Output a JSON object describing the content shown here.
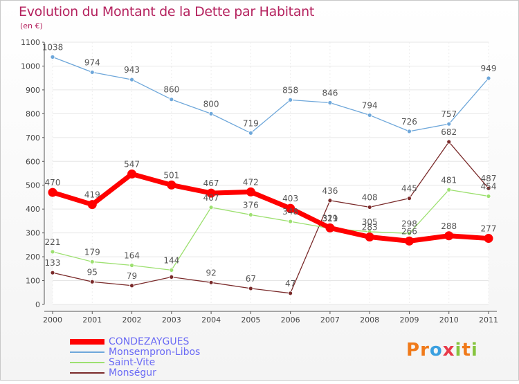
{
  "title": "Evolution du Montant de la Dette par Habitant",
  "unit": "(en €)",
  "logo": {
    "text": "Proxiti",
    "letters": [
      "P",
      "r",
      "o",
      "x",
      "i",
      "t",
      "i"
    ],
    "letter_colors": [
      "#f07a1a",
      "#f07a1a",
      "#3ba0e0",
      "#e83a4a",
      "#86c43e",
      "#f07a1a",
      "#86c43e"
    ]
  },
  "chart_data": {
    "type": "line",
    "title": "Evolution du Montant de la Dette par Habitant",
    "ylabel": "(en €)",
    "xlabel": "",
    "x": [
      "2000",
      "2001",
      "2002",
      "2003",
      "2004",
      "2005",
      "2006",
      "2007",
      "2008",
      "2009",
      "2010",
      "2011"
    ],
    "ylim": [
      0,
      1100
    ],
    "yticks": [
      0,
      100,
      200,
      300,
      400,
      500,
      600,
      700,
      800,
      900,
      1000,
      1100
    ],
    "grid": true,
    "legend_position": "bottom-left",
    "series": [
      {
        "name": "CONDEZAYGUES",
        "color": "#ff0000",
        "values": [
          470,
          419,
          547,
          501,
          467,
          472,
          403,
          321,
          283,
          266,
          288,
          277
        ],
        "labels": [
          "470",
          "419",
          "547",
          "501",
          "467",
          "472",
          "403",
          "321",
          "283",
          "266",
          "288",
          "277"
        ],
        "emphasis": true
      },
      {
        "name": "Monsempron-Libos",
        "color": "#6ea7da",
        "values": [
          1038,
          974,
          943,
          860,
          800,
          719,
          858,
          846,
          794,
          726,
          757,
          949
        ],
        "labels": [
          "1038",
          "974",
          "943",
          "860",
          "800",
          "719",
          "858",
          "846",
          "794",
          "726",
          "757",
          "949"
        ]
      },
      {
        "name": "Saint-Vite",
        "color": "#9de070",
        "values": [
          221,
          179,
          164,
          144,
          407,
          376,
          348,
          319,
          305,
          298,
          481,
          454
        ],
        "labels": [
          "221",
          "179",
          "164",
          "144",
          "407",
          "376",
          "348",
          "319",
          "305",
          "298",
          "481",
          "454"
        ]
      },
      {
        "name": "Monségur",
        "color": "#7a2a2a",
        "values": [
          133,
          95,
          79,
          115,
          92,
          67,
          47,
          436,
          408,
          445,
          682,
          487
        ],
        "labels": [
          "133",
          "95",
          "79",
          "",
          "92",
          "67",
          "47",
          "436",
          "408",
          "445",
          "682",
          "487"
        ]
      }
    ]
  }
}
